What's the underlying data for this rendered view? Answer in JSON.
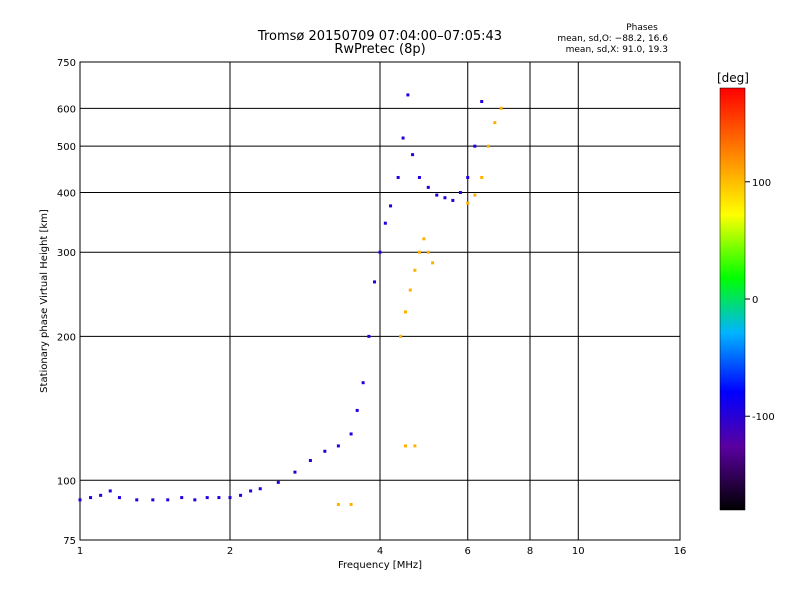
{
  "chart_data": {
    "type": "scatter",
    "title": "Tromsø 20150709 07:04:00–07:05:43",
    "subtitle": "RwPretec (8p)",
    "xlabel": "Frequency [MHz]",
    "ylabel": "Stationary phase Virtual Height [km]",
    "x_scale": "log",
    "y_scale": "log",
    "xlim": [
      1,
      16
    ],
    "ylim": [
      75,
      750
    ],
    "x_ticks": [
      1,
      2,
      4,
      6,
      8,
      10,
      16
    ],
    "x_tick_labels": [
      "1",
      "2",
      "4",
      "6",
      "8",
      "10",
      "16"
    ],
    "y_ticks": [
      75,
      100,
      200,
      300,
      400,
      500,
      600,
      750
    ],
    "y_tick_labels": [
      "75",
      "100",
      "200",
      "300",
      "400",
      "500",
      "600",
      "750"
    ],
    "grid": true,
    "info": {
      "heading": "Phases",
      "line_o": "mean, sd,O: −88.2, 16.6",
      "line_x": "mean, sd,X:  91.0, 19.3"
    },
    "colorbar": {
      "label": "[deg]",
      "range": [
        -180,
        180
      ],
      "ticks": [
        100,
        0,
        -100
      ],
      "tick_labels": [
        "100",
        "0",
        "-100"
      ]
    },
    "series": [
      {
        "color_deg": -95,
        "points": [
          [
            1.0,
            91
          ],
          [
            1.05,
            92
          ],
          [
            1.1,
            93
          ],
          [
            1.15,
            95
          ],
          [
            1.2,
            92
          ],
          [
            1.3,
            91
          ],
          [
            1.4,
            91
          ],
          [
            1.5,
            91
          ],
          [
            1.6,
            92
          ],
          [
            1.7,
            91
          ],
          [
            1.8,
            92
          ],
          [
            1.9,
            92
          ],
          [
            2.0,
            92
          ],
          [
            2.1,
            93
          ],
          [
            2.2,
            95
          ],
          [
            2.3,
            96
          ],
          [
            2.5,
            99
          ],
          [
            2.7,
            104
          ],
          [
            2.9,
            110
          ],
          [
            3.1,
            115
          ],
          [
            3.3,
            118
          ],
          [
            3.5,
            125
          ],
          [
            3.6,
            140
          ],
          [
            3.7,
            160
          ],
          [
            3.8,
            200
          ],
          [
            3.9,
            260
          ],
          [
            4.0,
            300
          ],
          [
            4.1,
            345
          ],
          [
            4.2,
            375
          ],
          [
            4.35,
            430
          ],
          [
            4.45,
            520
          ],
          [
            4.55,
            640
          ],
          [
            4.65,
            480
          ],
          [
            4.8,
            430
          ],
          [
            5.0,
            410
          ],
          [
            5.2,
            395
          ],
          [
            5.4,
            390
          ],
          [
            5.6,
            385
          ],
          [
            5.8,
            400
          ],
          [
            6.0,
            430
          ],
          [
            6.2,
            500
          ],
          [
            6.4,
            620
          ]
        ]
      },
      {
        "color_deg": 105,
        "points": [
          [
            4.4,
            200
          ],
          [
            4.5,
            225
          ],
          [
            4.6,
            250
          ],
          [
            4.7,
            275
          ],
          [
            4.8,
            300
          ],
          [
            4.9,
            320
          ],
          [
            5.0,
            300
          ],
          [
            5.1,
            285
          ],
          [
            6.0,
            380
          ],
          [
            6.2,
            395
          ],
          [
            6.4,
            430
          ],
          [
            6.6,
            500
          ],
          [
            6.8,
            560
          ],
          [
            7.0,
            600
          ],
          [
            4.5,
            118
          ],
          [
            4.7,
            118
          ],
          [
            3.3,
            89
          ],
          [
            3.5,
            89
          ]
        ]
      }
    ]
  }
}
